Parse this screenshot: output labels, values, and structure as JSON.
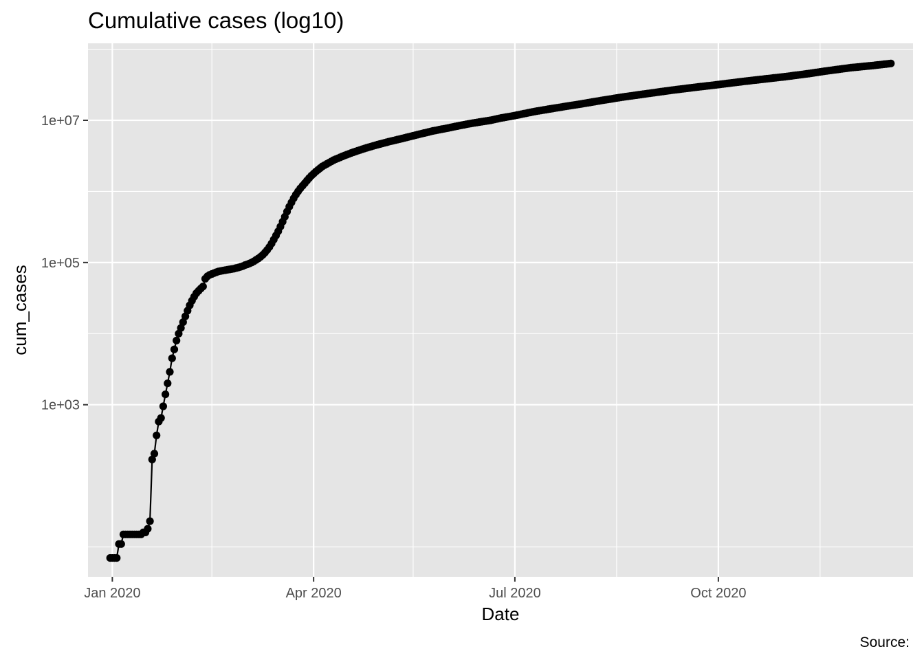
{
  "chart_data": {
    "type": "line",
    "title": "Cumulative cases (log10)",
    "xlabel": "Date",
    "ylabel": "cum_cases",
    "caption": "Source:",
    "y_scale": "log10",
    "xlim": [
      "2019-12-21",
      "2020-12-28"
    ],
    "ylim": [
      3.8,
      121000000
    ],
    "x_ticks": [
      {
        "value": "2020-01-01",
        "label": "Jan 2020"
      },
      {
        "value": "2020-04-01",
        "label": "Apr 2020"
      },
      {
        "value": "2020-07-01",
        "label": "Jul 2020"
      },
      {
        "value": "2020-10-01",
        "label": "Oct 2020"
      }
    ],
    "x_minor_breaks": [
      "2020-02-15",
      "2020-05-16",
      "2020-08-16",
      "2020-11-16"
    ],
    "y_ticks": [
      {
        "value": 1000,
        "label": "1e+03"
      },
      {
        "value": 100000,
        "label": "1e+05"
      },
      {
        "value": 10000000,
        "label": "1e+07"
      }
    ],
    "y_minor_breaks": [
      10,
      10000,
      1000000,
      100000000
    ],
    "grid": true,
    "legend": "none",
    "colors": {
      "panel": "#e5e5e5",
      "grid": "#ffffff",
      "series": "#000000"
    },
    "series": [
      {
        "values": [
          [
            "2019-12-31",
            7
          ],
          [
            "2020-01-01",
            7
          ],
          [
            "2020-01-02",
            7
          ],
          [
            "2020-01-03",
            7
          ],
          [
            "2020-01-04",
            11
          ],
          [
            "2020-01-05",
            11
          ],
          [
            "2020-01-06",
            15
          ],
          [
            "2020-01-07",
            15
          ],
          [
            "2020-01-08",
            15
          ],
          [
            "2020-01-09",
            15
          ],
          [
            "2020-01-10",
            15
          ],
          [
            "2020-01-11",
            15
          ],
          [
            "2020-01-12",
            15
          ],
          [
            "2020-01-13",
            15
          ],
          [
            "2020-01-14",
            15
          ],
          [
            "2020-01-15",
            16
          ],
          [
            "2020-01-16",
            16
          ],
          [
            "2020-01-17",
            18
          ],
          [
            "2020-01-18",
            23
          ],
          [
            "2020-01-19",
            170
          ],
          [
            "2020-01-20",
            205
          ],
          [
            "2020-01-21",
            370
          ],
          [
            "2020-01-22",
            580
          ],
          [
            "2020-01-23",
            650
          ],
          [
            "2020-01-24",
            950
          ],
          [
            "2020-01-25",
            1400
          ],
          [
            "2020-01-26",
            2000
          ],
          [
            "2020-01-27",
            2900
          ],
          [
            "2020-01-28",
            4500
          ],
          [
            "2020-01-29",
            6000
          ],
          [
            "2020-01-30",
            8000
          ],
          [
            "2020-01-31",
            10000
          ],
          [
            "2020-02-01",
            12000
          ],
          [
            "2020-02-02",
            14500
          ],
          [
            "2020-02-03",
            17500
          ],
          [
            "2020-02-04",
            21000
          ],
          [
            "2020-02-05",
            25000
          ],
          [
            "2020-02-06",
            29000
          ],
          [
            "2020-02-07",
            33000
          ],
          [
            "2020-02-08",
            37000
          ],
          [
            "2020-02-09",
            40000
          ],
          [
            "2020-02-10",
            43000
          ],
          [
            "2020-02-11",
            46000
          ],
          [
            "2020-02-12",
            59000
          ],
          [
            "2020-02-13",
            64000
          ],
          [
            "2020-02-14",
            67000
          ],
          [
            "2020-02-15",
            69000
          ],
          [
            "2020-02-16",
            71000
          ],
          [
            "2020-02-17",
            73000
          ],
          [
            "2020-02-18",
            75000
          ],
          [
            "2020-02-19",
            76000
          ],
          [
            "2020-02-20",
            77000
          ],
          [
            "2020-02-21",
            78000
          ],
          [
            "2020-02-22",
            79000
          ],
          [
            "2020-02-23",
            80000
          ],
          [
            "2020-02-24",
            81000
          ],
          [
            "2020-02-25",
            82000
          ],
          [
            "2020-02-26",
            83500
          ],
          [
            "2020-02-27",
            85000
          ],
          [
            "2020-02-28",
            87000
          ],
          [
            "2020-02-29",
            89000
          ],
          [
            "2020-03-01",
            92000
          ],
          [
            "2020-03-02",
            94000
          ],
          [
            "2020-03-03",
            97000
          ],
          [
            "2020-03-04",
            100000
          ],
          [
            "2020-03-05",
            104000
          ],
          [
            "2020-03-06",
            109000
          ],
          [
            "2020-03-07",
            114000
          ],
          [
            "2020-03-08",
            120000
          ],
          [
            "2020-03-09",
            128000
          ],
          [
            "2020-03-10",
            138000
          ],
          [
            "2020-03-11",
            150000
          ],
          [
            "2020-03-12",
            165000
          ],
          [
            "2020-03-13",
            185000
          ],
          [
            "2020-03-14",
            210000
          ],
          [
            "2020-03-15",
            240000
          ],
          [
            "2020-03-16",
            275000
          ],
          [
            "2020-03-17",
            320000
          ],
          [
            "2020-03-18",
            375000
          ],
          [
            "2020-03-19",
            440000
          ],
          [
            "2020-03-20",
            520000
          ],
          [
            "2020-03-21",
            610000
          ],
          [
            "2020-03-22",
            700000
          ],
          [
            "2020-03-23",
            800000
          ],
          [
            "2020-03-24",
            900000
          ],
          [
            "2020-03-25",
            1000000
          ],
          [
            "2020-03-26",
            1100000
          ],
          [
            "2020-03-27",
            1200000
          ],
          [
            "2020-03-28",
            1300000
          ],
          [
            "2020-03-29",
            1420000
          ],
          [
            "2020-03-30",
            1540000
          ],
          [
            "2020-03-31",
            1660000
          ],
          [
            "2020-04-02",
            1900000
          ],
          [
            "2020-04-05",
            2250000
          ],
          [
            "2020-04-10",
            2750000
          ],
          [
            "2020-04-15",
            3200000
          ],
          [
            "2020-04-20",
            3650000
          ],
          [
            "2020-04-25",
            4100000
          ],
          [
            "2020-04-30",
            4550000
          ],
          [
            "2020-05-05",
            5000000
          ],
          [
            "2020-05-10",
            5450000
          ],
          [
            "2020-05-15",
            5950000
          ],
          [
            "2020-05-20",
            6500000
          ],
          [
            "2020-05-25",
            7100000
          ],
          [
            "2020-05-31",
            7700000
          ],
          [
            "2020-06-05",
            8300000
          ],
          [
            "2020-06-10",
            8900000
          ],
          [
            "2020-06-15",
            9450000
          ],
          [
            "2020-06-20",
            10000000
          ],
          [
            "2020-06-25",
            10800000
          ],
          [
            "2020-06-30",
            11500000
          ],
          [
            "2020-07-10",
            13300000
          ],
          [
            "2020-07-20",
            15000000
          ],
          [
            "2020-07-31",
            17000000
          ],
          [
            "2020-08-10",
            19200000
          ],
          [
            "2020-08-20",
            21500000
          ],
          [
            "2020-08-31",
            24000000
          ],
          [
            "2020-09-10",
            26500000
          ],
          [
            "2020-09-20",
            29000000
          ],
          [
            "2020-09-30",
            31500000
          ],
          [
            "2020-10-10",
            34500000
          ],
          [
            "2020-10-20",
            37500000
          ],
          [
            "2020-10-31",
            41000000
          ],
          [
            "2020-11-10",
            45000000
          ],
          [
            "2020-11-20",
            50000000
          ],
          [
            "2020-11-30",
            55000000
          ],
          [
            "2020-12-10",
            59000000
          ],
          [
            "2020-12-18",
            63000000
          ]
        ]
      }
    ]
  }
}
